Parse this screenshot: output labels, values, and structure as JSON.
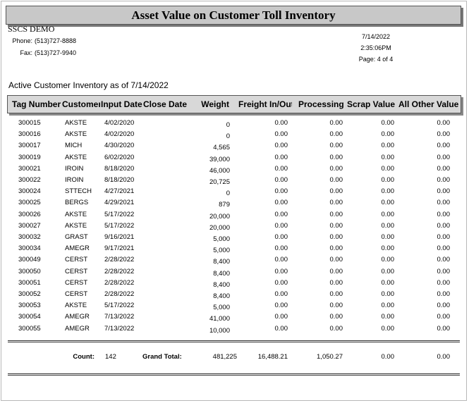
{
  "report": {
    "title": "Asset Value on Customer Toll Inventory",
    "company": "SSCS DEMO",
    "phone_label": "Phone:",
    "phone": "(513)727-8888",
    "fax_label": "Fax:",
    "fax": "(513)727-9940",
    "date": "7/14/2022",
    "time": "2:35:06PM",
    "page": "Page: 4 of 4",
    "subtitle": "Active Customer Inventory as of 7/14/2022"
  },
  "columns": [
    "Tag Number",
    "Customer",
    "Input Date",
    "Close Date",
    "Weight",
    "Freight In/Out",
    "Processing",
    "Scrap Value",
    "All Other Value"
  ],
  "rows": [
    {
      "tag": "300015",
      "customer": "AKSTE",
      "input_date": "4/02/2020",
      "close_date": "",
      "weight": "0",
      "freight": "0.00",
      "processing": "0.00",
      "scrap": "0.00",
      "other": "0.00"
    },
    {
      "tag": "300016",
      "customer": "AKSTE",
      "input_date": "4/02/2020",
      "close_date": "",
      "weight": "0",
      "freight": "0.00",
      "processing": "0.00",
      "scrap": "0.00",
      "other": "0.00"
    },
    {
      "tag": "300017",
      "customer": "MICH",
      "input_date": "4/30/2020",
      "close_date": "",
      "weight": "4,565",
      "freight": "0.00",
      "processing": "0.00",
      "scrap": "0.00",
      "other": "0.00"
    },
    {
      "tag": "300019",
      "customer": "AKSTE",
      "input_date": "6/02/2020",
      "close_date": "",
      "weight": "39,000",
      "freight": "0.00",
      "processing": "0.00",
      "scrap": "0.00",
      "other": "0.00"
    },
    {
      "tag": "300021",
      "customer": "IROIN",
      "input_date": "8/18/2020",
      "close_date": "",
      "weight": "46,000",
      "freight": "0.00",
      "processing": "0.00",
      "scrap": "0.00",
      "other": "0.00"
    },
    {
      "tag": "300022",
      "customer": "IROIN",
      "input_date": "8/18/2020",
      "close_date": "",
      "weight": "20,725",
      "freight": "0.00",
      "processing": "0.00",
      "scrap": "0.00",
      "other": "0.00"
    },
    {
      "tag": "300024",
      "customer": "STTECH",
      "input_date": "4/27/2021",
      "close_date": "",
      "weight": "0",
      "freight": "0.00",
      "processing": "0.00",
      "scrap": "0.00",
      "other": "0.00"
    },
    {
      "tag": "300025",
      "customer": "BERGS",
      "input_date": "4/29/2021",
      "close_date": "",
      "weight": "879",
      "freight": "0.00",
      "processing": "0.00",
      "scrap": "0.00",
      "other": "0.00"
    },
    {
      "tag": "300026",
      "customer": "AKSTE",
      "input_date": "5/17/2022",
      "close_date": "",
      "weight": "20,000",
      "freight": "0.00",
      "processing": "0.00",
      "scrap": "0.00",
      "other": "0.00"
    },
    {
      "tag": "300027",
      "customer": "AKSTE",
      "input_date": "5/17/2022",
      "close_date": "",
      "weight": "20,000",
      "freight": "0.00",
      "processing": "0.00",
      "scrap": "0.00",
      "other": "0.00"
    },
    {
      "tag": "300032",
      "customer": "GRAST",
      "input_date": "9/16/2021",
      "close_date": "",
      "weight": "5,000",
      "freight": "0.00",
      "processing": "0.00",
      "scrap": "0.00",
      "other": "0.00"
    },
    {
      "tag": "300034",
      "customer": "AMEGR",
      "input_date": "9/17/2021",
      "close_date": "",
      "weight": "5,000",
      "freight": "0.00",
      "processing": "0.00",
      "scrap": "0.00",
      "other": "0.00"
    },
    {
      "tag": "300049",
      "customer": "CERST",
      "input_date": "2/28/2022",
      "close_date": "",
      "weight": "8,400",
      "freight": "0.00",
      "processing": "0.00",
      "scrap": "0.00",
      "other": "0.00"
    },
    {
      "tag": "300050",
      "customer": "CERST",
      "input_date": "2/28/2022",
      "close_date": "",
      "weight": "8,400",
      "freight": "0.00",
      "processing": "0.00",
      "scrap": "0.00",
      "other": "0.00"
    },
    {
      "tag": "300051",
      "customer": "CERST",
      "input_date": "2/28/2022",
      "close_date": "",
      "weight": "8,400",
      "freight": "0.00",
      "processing": "0.00",
      "scrap": "0.00",
      "other": "0.00"
    },
    {
      "tag": "300052",
      "customer": "CERST",
      "input_date": "2/28/2022",
      "close_date": "",
      "weight": "8,400",
      "freight": "0.00",
      "processing": "0.00",
      "scrap": "0.00",
      "other": "0.00"
    },
    {
      "tag": "300053",
      "customer": "AKSTE",
      "input_date": "5/17/2022",
      "close_date": "",
      "weight": "5,000",
      "freight": "0.00",
      "processing": "0.00",
      "scrap": "0.00",
      "other": "0.00"
    },
    {
      "tag": "300054",
      "customer": "AMEGR",
      "input_date": "7/13/2022",
      "close_date": "",
      "weight": "41,000",
      "freight": "0.00",
      "processing": "0.00",
      "scrap": "0.00",
      "other": "0.00"
    },
    {
      "tag": "300055",
      "customer": "AMEGR",
      "input_date": "7/13/2022",
      "close_date": "",
      "weight": "10,000",
      "freight": "0.00",
      "processing": "0.00",
      "scrap": "0.00",
      "other": "0.00"
    }
  ],
  "totals": {
    "count_label": "Count:",
    "count": "142",
    "grand_label": "Grand Total:",
    "weight": "481,225",
    "freight": "16,488.21",
    "processing": "1,050.27",
    "scrap": "0.00",
    "other": "0.00"
  }
}
